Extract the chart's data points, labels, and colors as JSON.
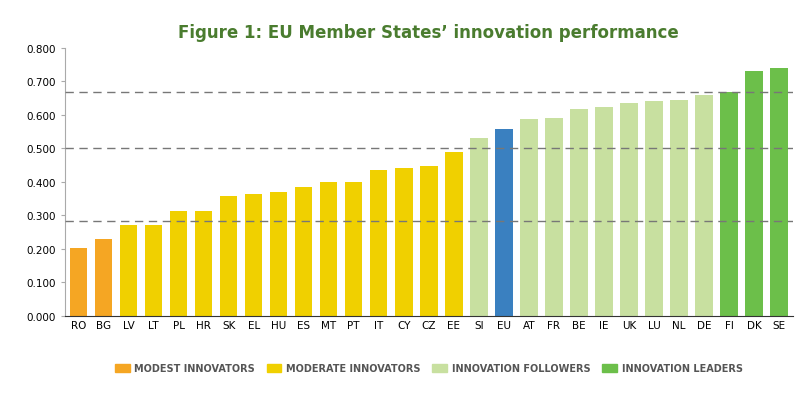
{
  "title": "Figure 1: EU Member States’ innovation performance",
  "title_color": "#4a7c2f",
  "categories": [
    "RO",
    "BG",
    "LV",
    "LT",
    "PL",
    "HR",
    "SK",
    "EL",
    "HU",
    "ES",
    "MT",
    "PT",
    "IT",
    "CY",
    "CZ",
    "EE",
    "SI",
    "EU",
    "AT",
    "FR",
    "BE",
    "IE",
    "UK",
    "LU",
    "NL",
    "DE",
    "FI",
    "DK",
    "SE"
  ],
  "values": [
    0.202,
    0.228,
    0.27,
    0.272,
    0.312,
    0.312,
    0.358,
    0.362,
    0.37,
    0.385,
    0.398,
    0.4,
    0.435,
    0.44,
    0.448,
    0.49,
    0.53,
    0.557,
    0.588,
    0.59,
    0.618,
    0.622,
    0.635,
    0.64,
    0.645,
    0.66,
    0.667,
    0.73,
    0.74
  ],
  "bar_colors": [
    "#F5A623",
    "#F5A623",
    "#F0D000",
    "#F0D000",
    "#F0D000",
    "#F0D000",
    "#F0D000",
    "#F0D000",
    "#F0D000",
    "#F0D000",
    "#F0D000",
    "#F0D000",
    "#F0D000",
    "#F0D000",
    "#F0D000",
    "#F0D000",
    "#C8E0A0",
    "#3A80C0",
    "#C8E0A0",
    "#C8E0A0",
    "#C8E0A0",
    "#C8E0A0",
    "#C8E0A0",
    "#C8E0A0",
    "#C8E0A0",
    "#C8E0A0",
    "#6CBF4A",
    "#6CBF4A",
    "#6CBF4A"
  ],
  "hlines": [
    0.283,
    0.5,
    0.667
  ],
  "hline_color": "#777777",
  "ylim": [
    0.0,
    0.8
  ],
  "yticks": [
    0.0,
    0.1,
    0.2,
    0.3,
    0.4,
    0.5,
    0.6,
    0.7,
    0.8
  ],
  "legend": [
    {
      "label": "MODEST INNOVATORS",
      "color": "#F5A623"
    },
    {
      "label": "MODERATE INNOVATORS",
      "color": "#F0D000"
    },
    {
      "label": "INNOVATION FOLLOWERS",
      "color": "#C8E0A0"
    },
    {
      "label": "INNOVATION LEADERS",
      "color": "#6CBF4A"
    }
  ],
  "background_color": "#FFFFFF",
  "tick_fontsize": 7.5,
  "title_fontsize": 12
}
